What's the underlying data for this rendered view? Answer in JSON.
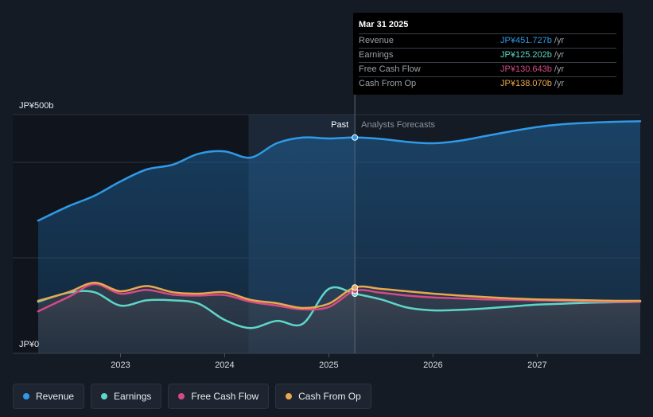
{
  "chart_data": {
    "type": "area",
    "y_unit_prefix": "JP¥",
    "y_unit_suffix": "b",
    "y_axis_top_label": "JP¥500b",
    "y_axis_bottom_label": "JP¥0",
    "ylim": [
      0,
      500
    ],
    "gridlines": [
      0,
      200,
      400,
      500
    ],
    "xlim": [
      2022.21,
      2027.99
    ],
    "x_ticks": [
      2023,
      2024,
      2025,
      2026,
      2027
    ],
    "x_tick_labels": [
      "2023",
      "2024",
      "2025",
      "2026",
      "2027"
    ],
    "forecast_start": 2025.25,
    "shade_start": 2024.23,
    "past_label": "Past",
    "forecast_label": "Analysts Forecasts",
    "series": [
      {
        "name": "Revenue",
        "color": "#2f9ae8",
        "x": [
          2022.21,
          2022.5,
          2022.75,
          2023.0,
          2023.25,
          2023.5,
          2023.75,
          2024.0,
          2024.25,
          2024.5,
          2024.75,
          2025.0,
          2025.25,
          2025.5,
          2025.75,
          2026.0,
          2026.25,
          2026.5,
          2026.75,
          2027.0,
          2027.25,
          2027.5,
          2027.75,
          2027.99
        ],
        "y": [
          278,
          308,
          330,
          360,
          385,
          395,
          418,
          423,
          410,
          440,
          452,
          450,
          452,
          449,
          443,
          440,
          445,
          455,
          465,
          474,
          480,
          483,
          485,
          486
        ]
      },
      {
        "name": "Earnings",
        "color": "#5ed6c8",
        "x": [
          2022.21,
          2022.5,
          2022.75,
          2023.0,
          2023.25,
          2023.5,
          2023.75,
          2024.0,
          2024.25,
          2024.5,
          2024.75,
          2025.0,
          2025.25,
          2025.5,
          2025.75,
          2026.0,
          2026.25,
          2026.5,
          2026.75,
          2027.0,
          2027.25,
          2027.5,
          2027.75,
          2027.99
        ],
        "y": [
          108,
          127,
          128,
          100,
          111,
          111,
          104,
          70,
          53,
          68,
          62,
          135,
          125,
          113,
          96,
          90,
          91,
          94,
          98,
          102,
          104,
          106,
          107,
          108
        ]
      },
      {
        "name": "Free Cash Flow",
        "color": "#d64a86",
        "x": [
          2022.21,
          2022.5,
          2022.75,
          2023.0,
          2023.25,
          2023.5,
          2023.75,
          2024.0,
          2024.25,
          2024.5,
          2024.75,
          2025.0,
          2025.25,
          2025.5,
          2025.75,
          2026.0,
          2026.25,
          2026.5,
          2026.75,
          2027.0,
          2027.25,
          2027.5,
          2027.75,
          2027.99
        ],
        "y": [
          88,
          118,
          145,
          125,
          133,
          123,
          121,
          122,
          108,
          100,
          92,
          97,
          131,
          127,
          121,
          117,
          115,
          113,
          112,
          111,
          110,
          109,
          108,
          108
        ]
      },
      {
        "name": "Cash From Op",
        "color": "#e8a94e",
        "x": [
          2022.21,
          2022.5,
          2022.75,
          2023.0,
          2023.25,
          2023.5,
          2023.75,
          2024.0,
          2024.25,
          2024.5,
          2024.75,
          2025.0,
          2025.25,
          2025.5,
          2025.75,
          2026.0,
          2026.25,
          2026.5,
          2026.75,
          2027.0,
          2027.25,
          2027.5,
          2027.75,
          2027.99
        ],
        "y": [
          110,
          128,
          148,
          130,
          141,
          128,
          125,
          128,
          112,
          105,
          95,
          104,
          138,
          135,
          130,
          125,
          121,
          118,
          115,
          113,
          112,
          111,
          110,
          110
        ]
      }
    ]
  },
  "tooltip": {
    "date": "Mar 31 2025",
    "rows": [
      {
        "label": "Revenue",
        "value": "JP¥451.727b",
        "unit": "/yr",
        "color": "#2f9ae8"
      },
      {
        "label": "Earnings",
        "value": "JP¥125.202b",
        "unit": "/yr",
        "color": "#5ed6c8"
      },
      {
        "label": "Free Cash Flow",
        "value": "JP¥130.643b",
        "unit": "/yr",
        "color": "#d64a86"
      },
      {
        "label": "Cash From Op",
        "value": "JP¥138.070b",
        "unit": "/yr",
        "color": "#e8a94e"
      }
    ]
  },
  "legend": [
    {
      "label": "Revenue",
      "color": "#2f9ae8"
    },
    {
      "label": "Earnings",
      "color": "#5ed6c8"
    },
    {
      "label": "Free Cash Flow",
      "color": "#d64a86"
    },
    {
      "label": "Cash From Op",
      "color": "#e8a94e"
    }
  ]
}
